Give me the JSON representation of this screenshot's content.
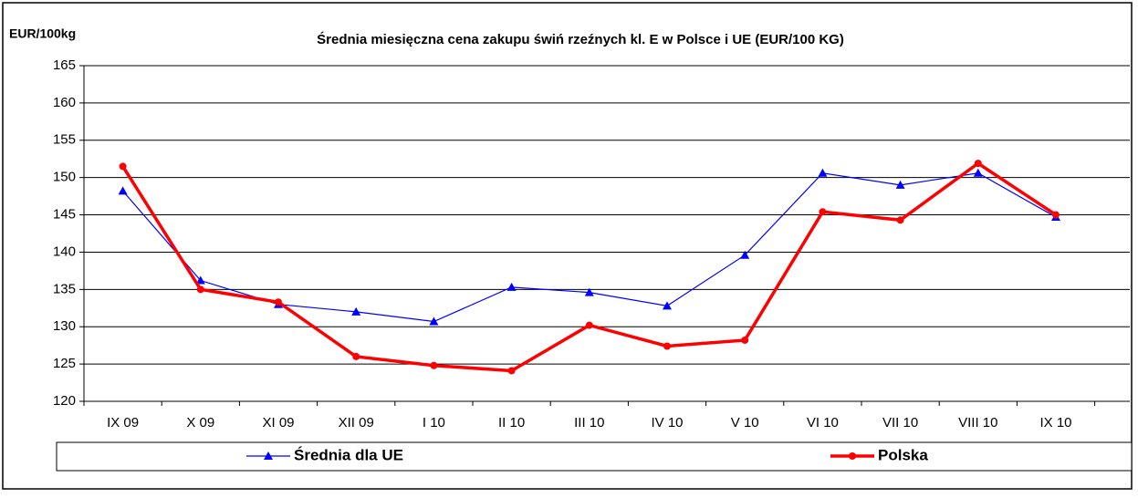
{
  "chart_data": {
    "type": "line",
    "title": "Średnia miesięczna cena zakupu świń rzeźnych kl. E w  Polsce i UE (EUR/100 KG)",
    "y_label": "EUR/100kg",
    "categories": [
      "IX 09",
      "X 09",
      "XI 09",
      "XII 09",
      "I 10",
      "II 10",
      "III 10",
      "IV 10",
      "V 10",
      "VI 10",
      "VII 10",
      "VIII 10",
      "IX 10"
    ],
    "series": [
      {
        "name": "Średnia dla  UE",
        "color": "#0000ff",
        "marker": "triangle",
        "values": [
          148.2,
          136.2,
          133.0,
          132.0,
          130.7,
          135.3,
          134.6,
          132.8,
          139.6,
          150.6,
          149.0,
          150.6,
          144.7
        ]
      },
      {
        "name": "Polska",
        "color": "#ff0000",
        "marker": "circle",
        "values": [
          151.5,
          135.0,
          133.3,
          126.0,
          124.8,
          124.1,
          130.2,
          127.4,
          128.2,
          145.4,
          144.3,
          151.9,
          145.0
        ]
      }
    ],
    "ylim": [
      120,
      165
    ],
    "yticks": [
      120,
      125,
      130,
      135,
      140,
      145,
      150,
      155,
      160,
      165
    ],
    "grid": true,
    "legend": "bottom"
  }
}
